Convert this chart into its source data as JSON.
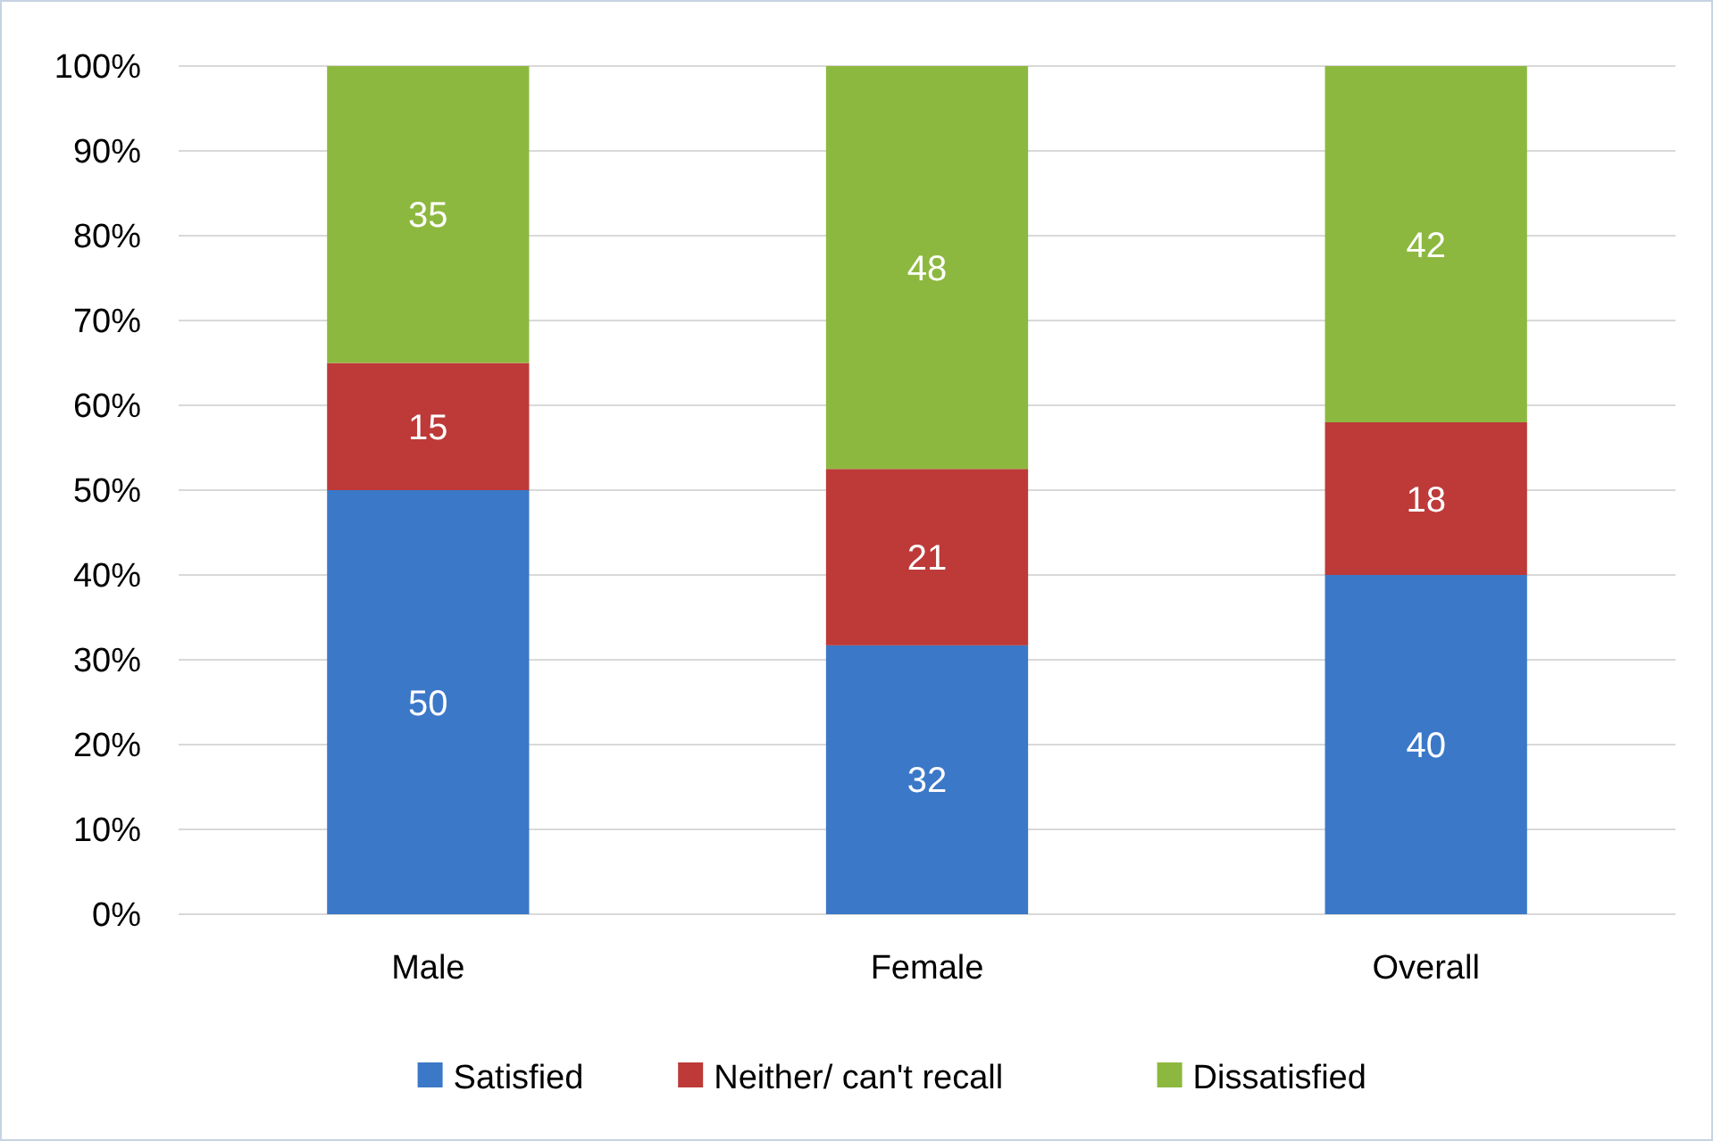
{
  "chart_data": {
    "type": "bar",
    "stacked": true,
    "categories": [
      "Male",
      "Female",
      "Overall"
    ],
    "series": [
      {
        "name": "Satisfied",
        "color": "#3b78c8",
        "values": [
          50,
          31.7,
          40
        ],
        "value_labels": [
          "50",
          "32",
          "40"
        ]
      },
      {
        "name": "Neither/ can't recall",
        "color": "#bd3a38",
        "values": [
          15,
          20.8,
          18
        ],
        "value_labels": [
          "15",
          "21",
          "18"
        ]
      },
      {
        "name": "Dissatisfied",
        "color": "#8db83f",
        "values": [
          35,
          47.5,
          42
        ],
        "value_labels": [
          "35",
          "48",
          "42"
        ]
      }
    ],
    "ylim": [
      0,
      100
    ],
    "yticks": [
      {
        "value": 0,
        "label": "0%"
      },
      {
        "value": 10,
        "label": "10%"
      },
      {
        "value": 20,
        "label": "20%"
      },
      {
        "value": 30,
        "label": "30%"
      },
      {
        "value": 40,
        "label": "40%"
      },
      {
        "value": 50,
        "label": "50%"
      },
      {
        "value": 60,
        "label": "60%"
      },
      {
        "value": 70,
        "label": "70%"
      },
      {
        "value": 80,
        "label": "80%"
      },
      {
        "value": 90,
        "label": "90%"
      },
      {
        "value": 100,
        "label": "100%"
      }
    ],
    "grid": "y",
    "legend": "bottom"
  }
}
